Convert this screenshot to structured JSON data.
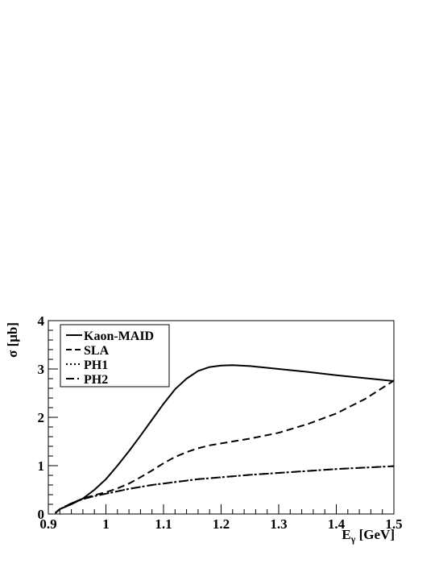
{
  "chart_data": {
    "type": "line",
    "title": "",
    "xlabel": "E",
    "xlabel_subscript": "γ",
    "xlabel_unit": " [GeV]",
    "ylabel": "σ [μb]",
    "xlim": [
      0.9,
      1.5
    ],
    "ylim": [
      0,
      4
    ],
    "x_ticks": [
      0.9,
      1.0,
      1.1,
      1.2,
      1.3,
      1.4,
      1.5
    ],
    "x_tick_labels": [
      "0.9",
      "1",
      "1.1",
      "1.2",
      "1.3",
      "1.4",
      "1.5"
    ],
    "y_ticks": [
      0,
      1,
      2,
      3,
      4
    ],
    "y_tick_labels": [
      "0",
      "1",
      "2",
      "3",
      "4"
    ],
    "grid": false,
    "legend_position": "top-left",
    "series": [
      {
        "name": "Kaon-MAID",
        "style": "solid",
        "x": [
          0.912,
          0.92,
          0.94,
          0.96,
          0.98,
          1.0,
          1.02,
          1.04,
          1.06,
          1.08,
          1.1,
          1.12,
          1.14,
          1.16,
          1.18,
          1.2,
          1.22,
          1.25,
          1.3,
          1.35,
          1.4,
          1.45,
          1.5
        ],
        "values": [
          0.02,
          0.1,
          0.2,
          0.32,
          0.5,
          0.72,
          1.0,
          1.3,
          1.62,
          1.95,
          2.28,
          2.58,
          2.8,
          2.96,
          3.04,
          3.07,
          3.08,
          3.06,
          3.0,
          2.94,
          2.87,
          2.81,
          2.75
        ]
      },
      {
        "name": "SLA",
        "style": "dashed",
        "x": [
          0.912,
          0.92,
          0.94,
          0.96,
          0.98,
          1.0,
          1.02,
          1.04,
          1.06,
          1.08,
          1.1,
          1.12,
          1.14,
          1.16,
          1.18,
          1.2,
          1.22,
          1.25,
          1.3,
          1.35,
          1.4,
          1.45,
          1.5
        ],
        "values": [
          0.02,
          0.1,
          0.22,
          0.32,
          0.39,
          0.45,
          0.53,
          0.63,
          0.76,
          0.9,
          1.05,
          1.18,
          1.28,
          1.36,
          1.42,
          1.46,
          1.5,
          1.56,
          1.68,
          1.86,
          2.08,
          2.38,
          2.76
        ]
      },
      {
        "name": "PH1",
        "style": "dotted",
        "x": [
          0.912,
          0.92,
          0.94,
          0.96,
          0.98,
          1.0,
          1.02,
          1.04,
          1.06,
          1.08,
          1.1,
          1.12,
          1.14,
          1.16,
          1.18,
          1.2,
          1.22,
          1.25,
          1.3,
          1.35,
          1.4,
          1.45,
          1.5
        ],
        "values": [
          0.02,
          0.1,
          0.22,
          0.31,
          0.37,
          0.42,
          0.47,
          0.52,
          0.56,
          0.6,
          0.63,
          0.66,
          0.69,
          0.72,
          0.74,
          0.76,
          0.78,
          0.81,
          0.85,
          0.89,
          0.93,
          0.96,
          0.99
        ]
      },
      {
        "name": "PH2",
        "style": "dashdot",
        "x": [
          0.912,
          0.92,
          0.94,
          0.96,
          0.98,
          1.0,
          1.02,
          1.04,
          1.06,
          1.08,
          1.1,
          1.12,
          1.14,
          1.16,
          1.18,
          1.2,
          1.22,
          1.25,
          1.3,
          1.35,
          1.4,
          1.45,
          1.5
        ],
        "values": [
          0.02,
          0.1,
          0.22,
          0.31,
          0.37,
          0.42,
          0.47,
          0.52,
          0.56,
          0.6,
          0.63,
          0.66,
          0.69,
          0.72,
          0.74,
          0.76,
          0.78,
          0.81,
          0.85,
          0.89,
          0.93,
          0.96,
          0.99
        ]
      }
    ]
  }
}
